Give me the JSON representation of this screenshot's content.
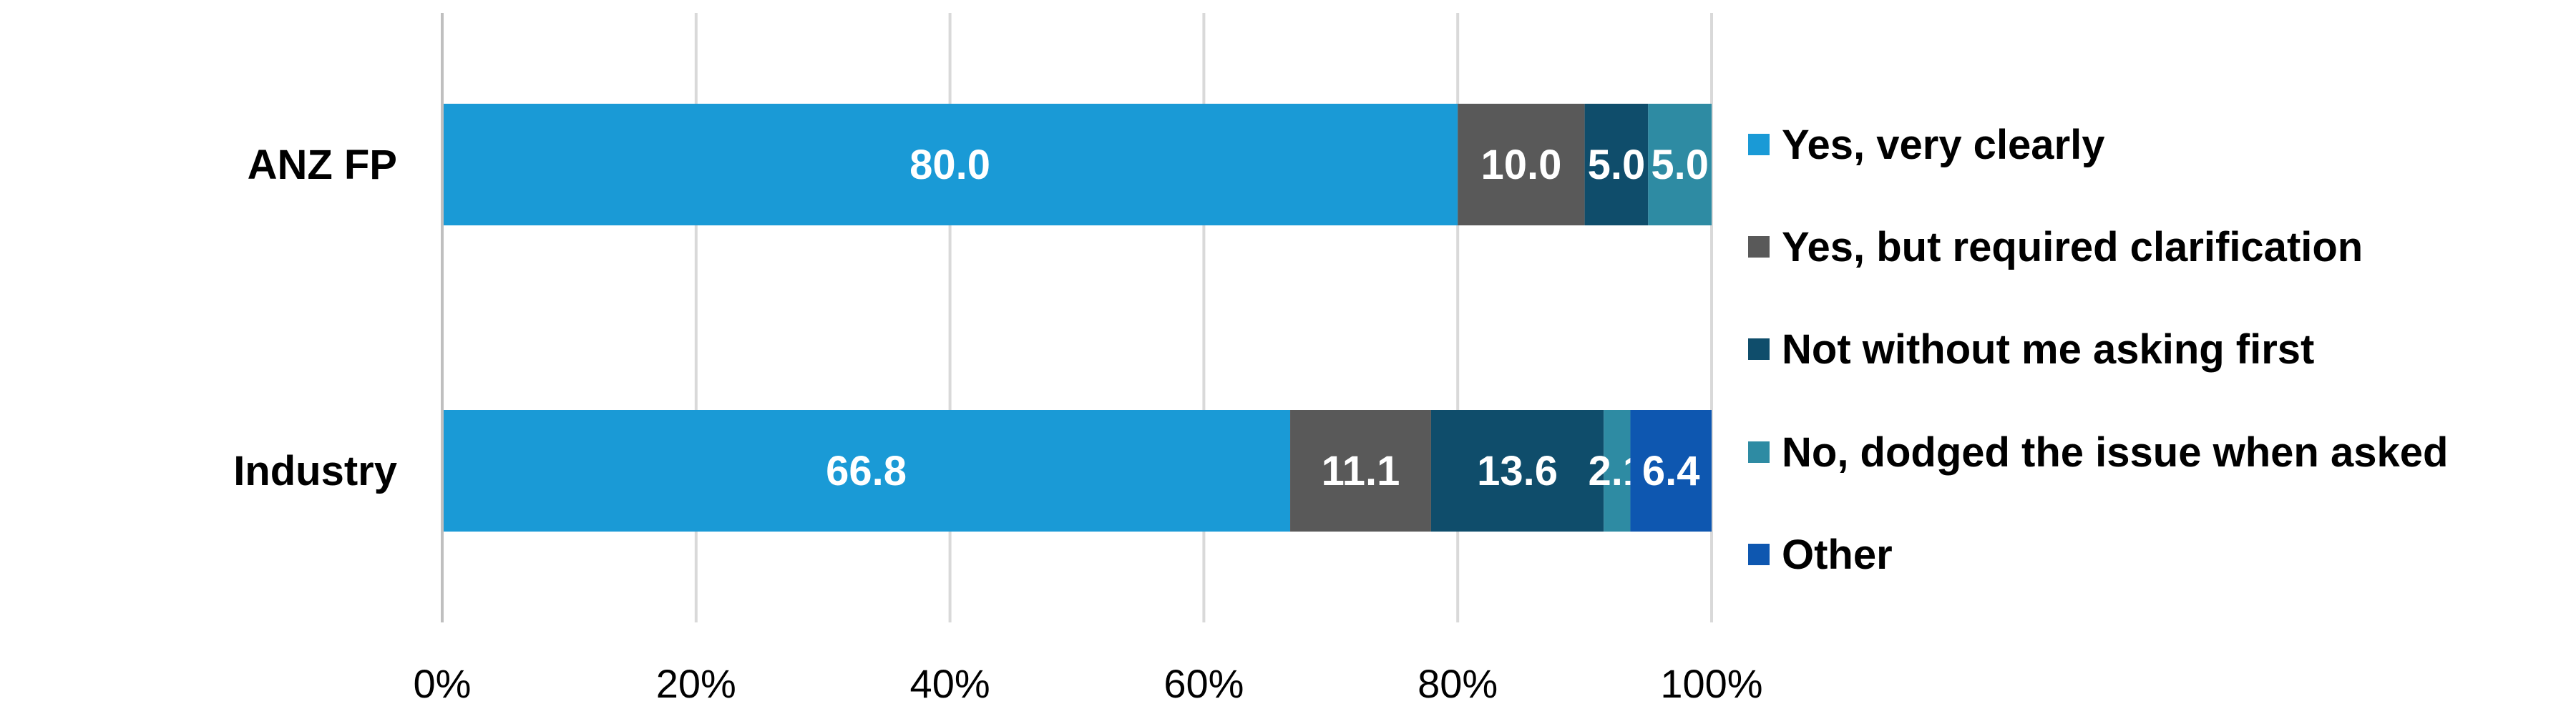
{
  "chart_data": {
    "type": "bar",
    "orientation": "horizontal",
    "stacked": "percent",
    "categories": [
      "ANZ FP",
      "Industry"
    ],
    "series": [
      {
        "name": "Yes, very clearly",
        "values": [
          80.0,
          66.8
        ],
        "labels": [
          "80.0",
          "66.8"
        ],
        "color": "#1a9ad6"
      },
      {
        "name": "Yes, but required clarification",
        "values": [
          10.0,
          11.1
        ],
        "labels": [
          "10.0",
          "11.1"
        ],
        "color": "#595959"
      },
      {
        "name": "Not without me asking first",
        "values": [
          5.0,
          13.6
        ],
        "labels": [
          "5.0",
          "13.6"
        ],
        "color": "#0f4d6b"
      },
      {
        "name": "No, dodged the issue when asked",
        "values": [
          5.0,
          2.1
        ],
        "labels": [
          "5.0",
          "2.1"
        ],
        "color": "#2e8ba3"
      },
      {
        "name": "Other",
        "values": [
          0,
          6.4
        ],
        "labels": [
          "",
          "6.4"
        ],
        "color": "#0e57b0"
      }
    ],
    "xlim": [
      0,
      100
    ],
    "xticks": [
      "0%",
      "20%",
      "40%",
      "60%",
      "80%",
      "100%"
    ],
    "grid": true,
    "legend": "right",
    "xlabel": "",
    "ylabel": "",
    "title": ""
  }
}
